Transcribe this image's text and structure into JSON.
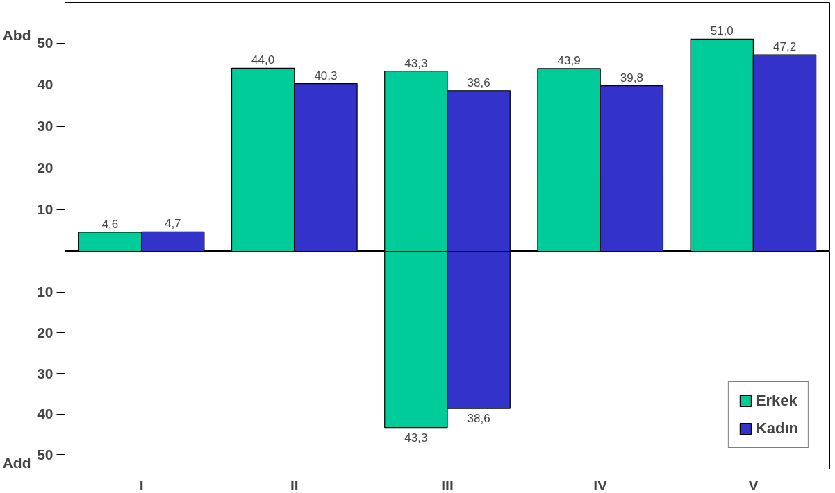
{
  "chart_data": [
    {
      "type": "bar",
      "categories": [
        null,
        null,
        null,
        null,
        null
      ],
      "series": [
        {
          "color": "#00cc99",
          "values": [
            4.6,
            44.0,
            43.3,
            43.9,
            51.0
          ],
          "value_labels": [
            "4,6",
            "44,0",
            "43,3",
            "43,9",
            "51,0"
          ]
        },
        {
          "color": "#3333cc",
          "values": [
            4.7,
            40.3,
            38.6,
            39.8,
            47.2
          ],
          "value_labels": [
            "4,7",
            "40,3",
            "38,6",
            "39,8",
            "47,2"
          ]
        }
      ],
      "ylim": [
        0,
        59.8
      ],
      "yticks": [
        10,
        20,
        30,
        40,
        50
      ],
      "annotations": [
        "Abd"
      ],
      "tick_labels": "y"
    },
    {
      "type": "bar",
      "categories": [
        "I",
        "II",
        "III",
        "IV",
        "V"
      ],
      "series": [
        {
          "name": "Erkek",
          "color": "#00cc99",
          "values": [
            null,
            null,
            43.3,
            null,
            null
          ],
          "value_labels": [
            null,
            null,
            "43,3",
            null,
            null
          ]
        },
        {
          "name": "Kadın",
          "color": "#3333cc",
          "values": [
            null,
            null,
            38.6,
            null,
            null
          ],
          "value_labels": [
            null,
            null,
            "38,6",
            null,
            null
          ]
        }
      ],
      "ylim": [
        53.5,
        0
      ],
      "yticks": [
        10,
        20,
        30,
        40,
        50
      ],
      "annotations": [
        "Add"
      ],
      "legend": "bottom right"
    }
  ]
}
